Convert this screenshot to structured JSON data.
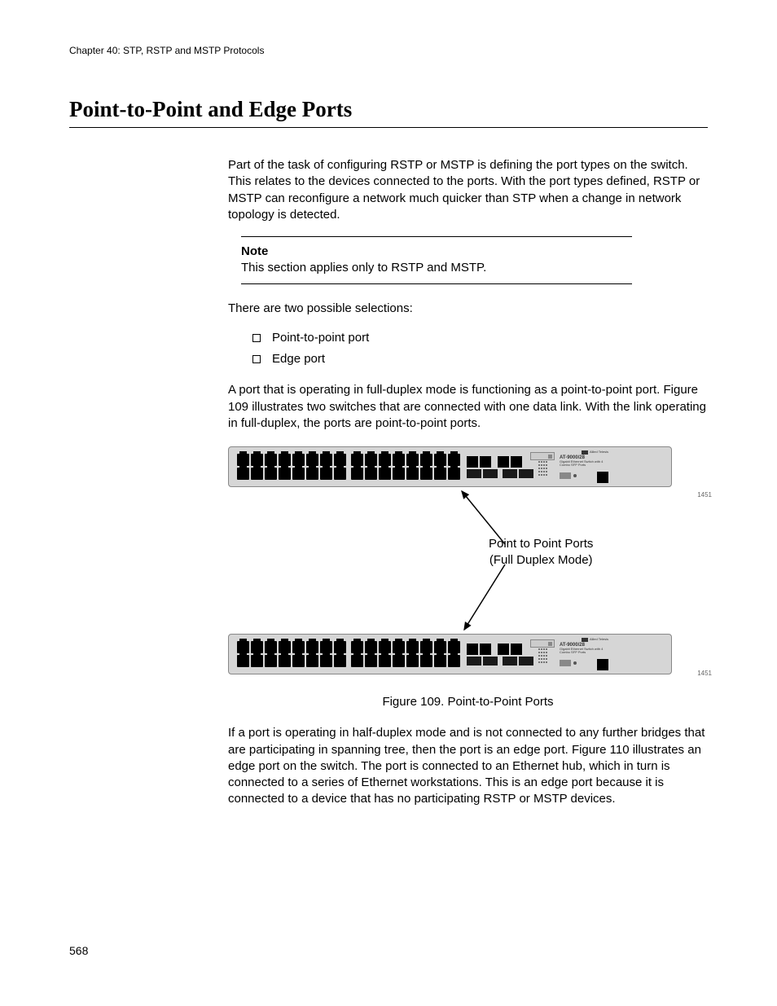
{
  "header": {
    "chapter": "Chapter 40: STP, RSTP and MSTP Protocols"
  },
  "title": "Point-to-Point and Edge Ports",
  "para1": "Part of the task of configuring RSTP or MSTP is defining the port types on the switch. This relates to the devices connected to the ports. With the port types defined, RSTP or MSTP can reconfigure a network much quicker than STP when a change in network topology is detected.",
  "note": {
    "label": "Note",
    "text": "This section applies only to RSTP and MSTP."
  },
  "para2": "There are two possible selections:",
  "bullets": {
    "b1": "Point-to-point port",
    "b2": "Edge port"
  },
  "para3": "A port that is operating in full-duplex mode is functioning as a point-to-point port. Figure 109 illustrates two switches that are connected with one data link. With the link operating in full-duplex, the ports are point-to-point ports.",
  "figure": {
    "annot_l1": "Point to Point Ports",
    "annot_l2": "(Full Duplex Mode)",
    "caption": "Figure 109. Point-to-Point Ports",
    "switch_model": "AT-9000/28",
    "switch_sub": "Gigabit Ethernet Switch with 4 Combo SFP Ports",
    "brand": "Allied Telesis",
    "fignum": "1451",
    "colors": {
      "chassis": "#d6d6d6",
      "port": "#000000",
      "border": "#888888"
    }
  },
  "para4": "If a port is operating in half-duplex mode and is not connected to any further bridges that are participating in spanning tree, then the port is an edge port. Figure 110 illustrates an edge port on the switch. The port is connected to an Ethernet hub, which in turn is connected to a series of Ethernet workstations. This is an edge port because it is connected to a device that has no participating RSTP or MSTP devices.",
  "page_number": "568"
}
